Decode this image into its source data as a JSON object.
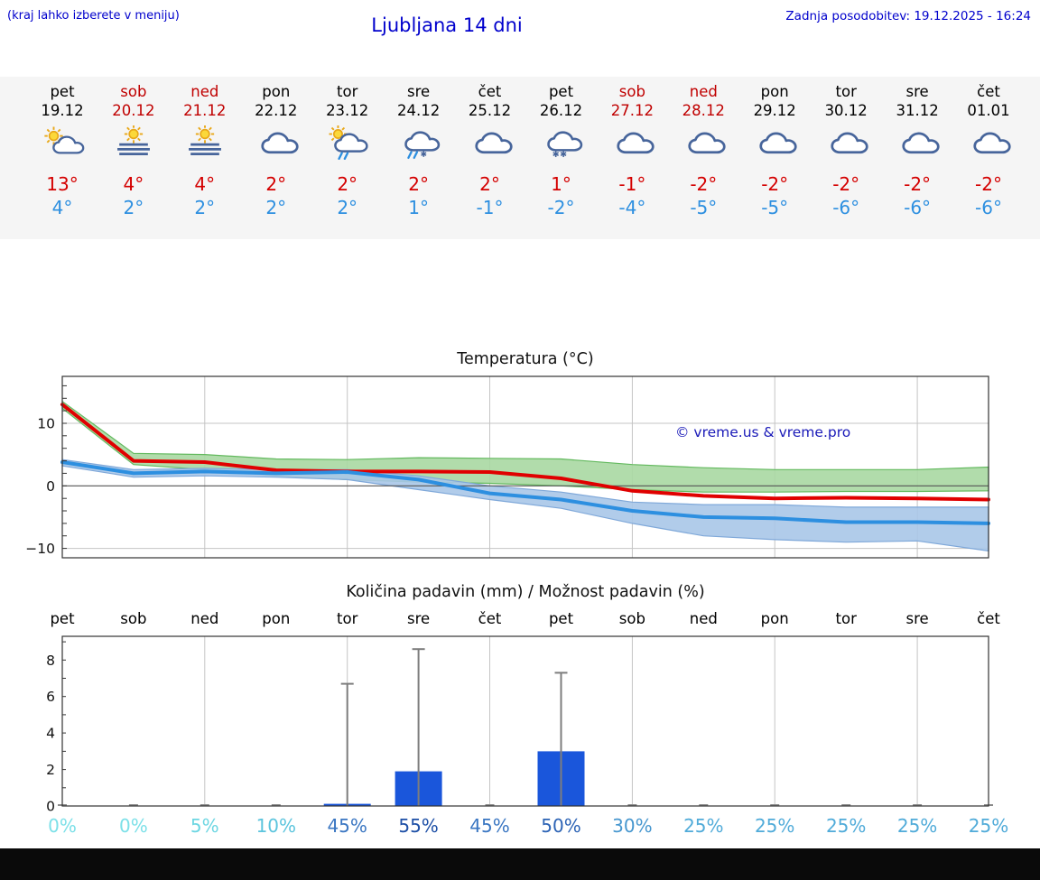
{
  "header": {
    "hint": "(kraj lahko izberete v meniju)",
    "title": "Ljubljana 14 dni",
    "updated": "Zadnja posodobitev: 19.12.2025 - 16:24"
  },
  "colors": {
    "accent_blue": "#0000cc",
    "high_red": "#d40000",
    "low_blue": "#2d8fe0",
    "weekend_red": "#c00000",
    "strip_bg": "#f5f5f5"
  },
  "forecast_days": [
    {
      "name": "pet",
      "date": "19.12",
      "weekend": false,
      "icon": "partly-sunny",
      "high": "13°",
      "low": "4°"
    },
    {
      "name": "sob",
      "date": "20.12",
      "weekend": true,
      "icon": "sun-fog",
      "high": "4°",
      "low": "2°"
    },
    {
      "name": "ned",
      "date": "21.12",
      "weekend": true,
      "icon": "sun-fog",
      "high": "4°",
      "low": "2°"
    },
    {
      "name": "pon",
      "date": "22.12",
      "weekend": false,
      "icon": "cloudy",
      "high": "2°",
      "low": "2°"
    },
    {
      "name": "tor",
      "date": "23.12",
      "weekend": false,
      "icon": "sun-rain",
      "high": "2°",
      "low": "2°"
    },
    {
      "name": "sre",
      "date": "24.12",
      "weekend": false,
      "icon": "rain-snow",
      "high": "2°",
      "low": "1°"
    },
    {
      "name": "čet",
      "date": "25.12",
      "weekend": false,
      "icon": "cloudy",
      "high": "2°",
      "low": "-1°"
    },
    {
      "name": "pet",
      "date": "26.12",
      "weekend": false,
      "icon": "snow",
      "high": "1°",
      "low": "-2°"
    },
    {
      "name": "sob",
      "date": "27.12",
      "weekend": true,
      "icon": "cloudy",
      "high": "-1°",
      "low": "-4°"
    },
    {
      "name": "ned",
      "date": "28.12",
      "weekend": true,
      "icon": "cloudy",
      "high": "-2°",
      "low": "-5°"
    },
    {
      "name": "pon",
      "date": "29.12",
      "weekend": false,
      "icon": "cloudy",
      "high": "-2°",
      "low": "-5°"
    },
    {
      "name": "tor",
      "date": "30.12",
      "weekend": false,
      "icon": "cloudy",
      "high": "-2°",
      "low": "-6°"
    },
    {
      "name": "sre",
      "date": "31.12",
      "weekend": false,
      "icon": "cloudy",
      "high": "-2°",
      "low": "-6°"
    },
    {
      "name": "čet",
      "date": "01.01",
      "weekend": false,
      "icon": "cloudy",
      "high": "-2°",
      "low": "-6°"
    }
  ],
  "chart_data": [
    {
      "type": "line",
      "title": "Temperatura (°C)",
      "watermark": "© vreme.us & vreme.pro",
      "categories": [
        "19.12",
        "20.12",
        "21.12",
        "22.12",
        "23.12",
        "24.12",
        "25.12",
        "26.12",
        "27.12",
        "28.12",
        "29.12",
        "30.12",
        "31.12",
        "01.01"
      ],
      "ylim": [
        -11.5,
        17.5
      ],
      "yticks": [
        -10,
        0,
        10
      ],
      "grid": true,
      "series": [
        {
          "name": "max temperature",
          "color": "#e00000",
          "values": [
            13,
            4,
            3.8,
            2.5,
            2.3,
            2.3,
            2.2,
            1.2,
            -0.8,
            -1.6,
            -2.0,
            -1.9,
            -2.0,
            -2.2
          ]
        },
        {
          "name": "min temperature",
          "color": "#2d8fe0",
          "values": [
            3.8,
            2.0,
            2.3,
            2.0,
            2.2,
            1.0,
            -1.2,
            -2.2,
            -4.0,
            -5.0,
            -5.2,
            -5.8,
            -5.8,
            -6.0
          ]
        }
      ],
      "bands": [
        {
          "name": "max-range",
          "color": "#a9d8a2",
          "edge": "#63b95e",
          "upper": [
            13.5,
            5.2,
            5.0,
            4.3,
            4.2,
            4.5,
            4.4,
            4.3,
            3.4,
            2.9,
            2.6,
            2.6,
            2.6,
            3.0
          ],
          "lower": [
            12.4,
            3.4,
            2.6,
            1.6,
            1.0,
            0.6,
            0.4,
            0.0,
            -0.6,
            -1.0,
            -1.0,
            -0.9,
            -0.9,
            -0.8
          ]
        },
        {
          "name": "min-range",
          "color": "#a9c6e8",
          "edge": "#7fa8d9",
          "upper": [
            4.2,
            2.6,
            2.8,
            2.6,
            2.6,
            1.6,
            0.0,
            -1.0,
            -2.6,
            -3.0,
            -3.0,
            -3.4,
            -3.4,
            -3.4
          ],
          "lower": [
            3.2,
            1.4,
            1.6,
            1.4,
            1.0,
            -0.6,
            -2.2,
            -3.6,
            -6.0,
            -8.0,
            -8.6,
            -9.0,
            -8.8,
            -10.4
          ]
        }
      ]
    },
    {
      "type": "bar",
      "title": "Količina padavin (mm) / Možnost padavin (%)",
      "categories": [
        "pet",
        "sob",
        "ned",
        "pon",
        "tor",
        "sre",
        "čet",
        "pet",
        "sob",
        "ned",
        "pon",
        "tor",
        "sre",
        "čet"
      ],
      "values": [
        0,
        0,
        0,
        0,
        0.12,
        1.9,
        0,
        3.0,
        0,
        0,
        0,
        0,
        0,
        0
      ],
      "whisker_max": [
        0,
        0,
        0,
        0,
        6.7,
        8.6,
        0,
        7.3,
        0,
        0,
        0,
        0,
        0,
        0
      ],
      "ylim": [
        0,
        9.3
      ],
      "yticks": [
        0,
        2,
        4,
        6,
        8
      ],
      "bar_color": "#1a56db",
      "percent_labels": [
        "0%",
        "0%",
        "5%",
        "10%",
        "45%",
        "55%",
        "45%",
        "50%",
        "30%",
        "25%",
        "25%",
        "25%",
        "25%",
        "25%"
      ],
      "percent_colors": [
        "#7ce0e8",
        "#7ce0e8",
        "#6cd6e2",
        "#5bc4dd",
        "#3a76c2",
        "#1d4fa6",
        "#3a76c2",
        "#2c63b5",
        "#4797cf",
        "#50abd9",
        "#50abd9",
        "#50abd9",
        "#50abd9",
        "#50abd9"
      ]
    }
  ]
}
